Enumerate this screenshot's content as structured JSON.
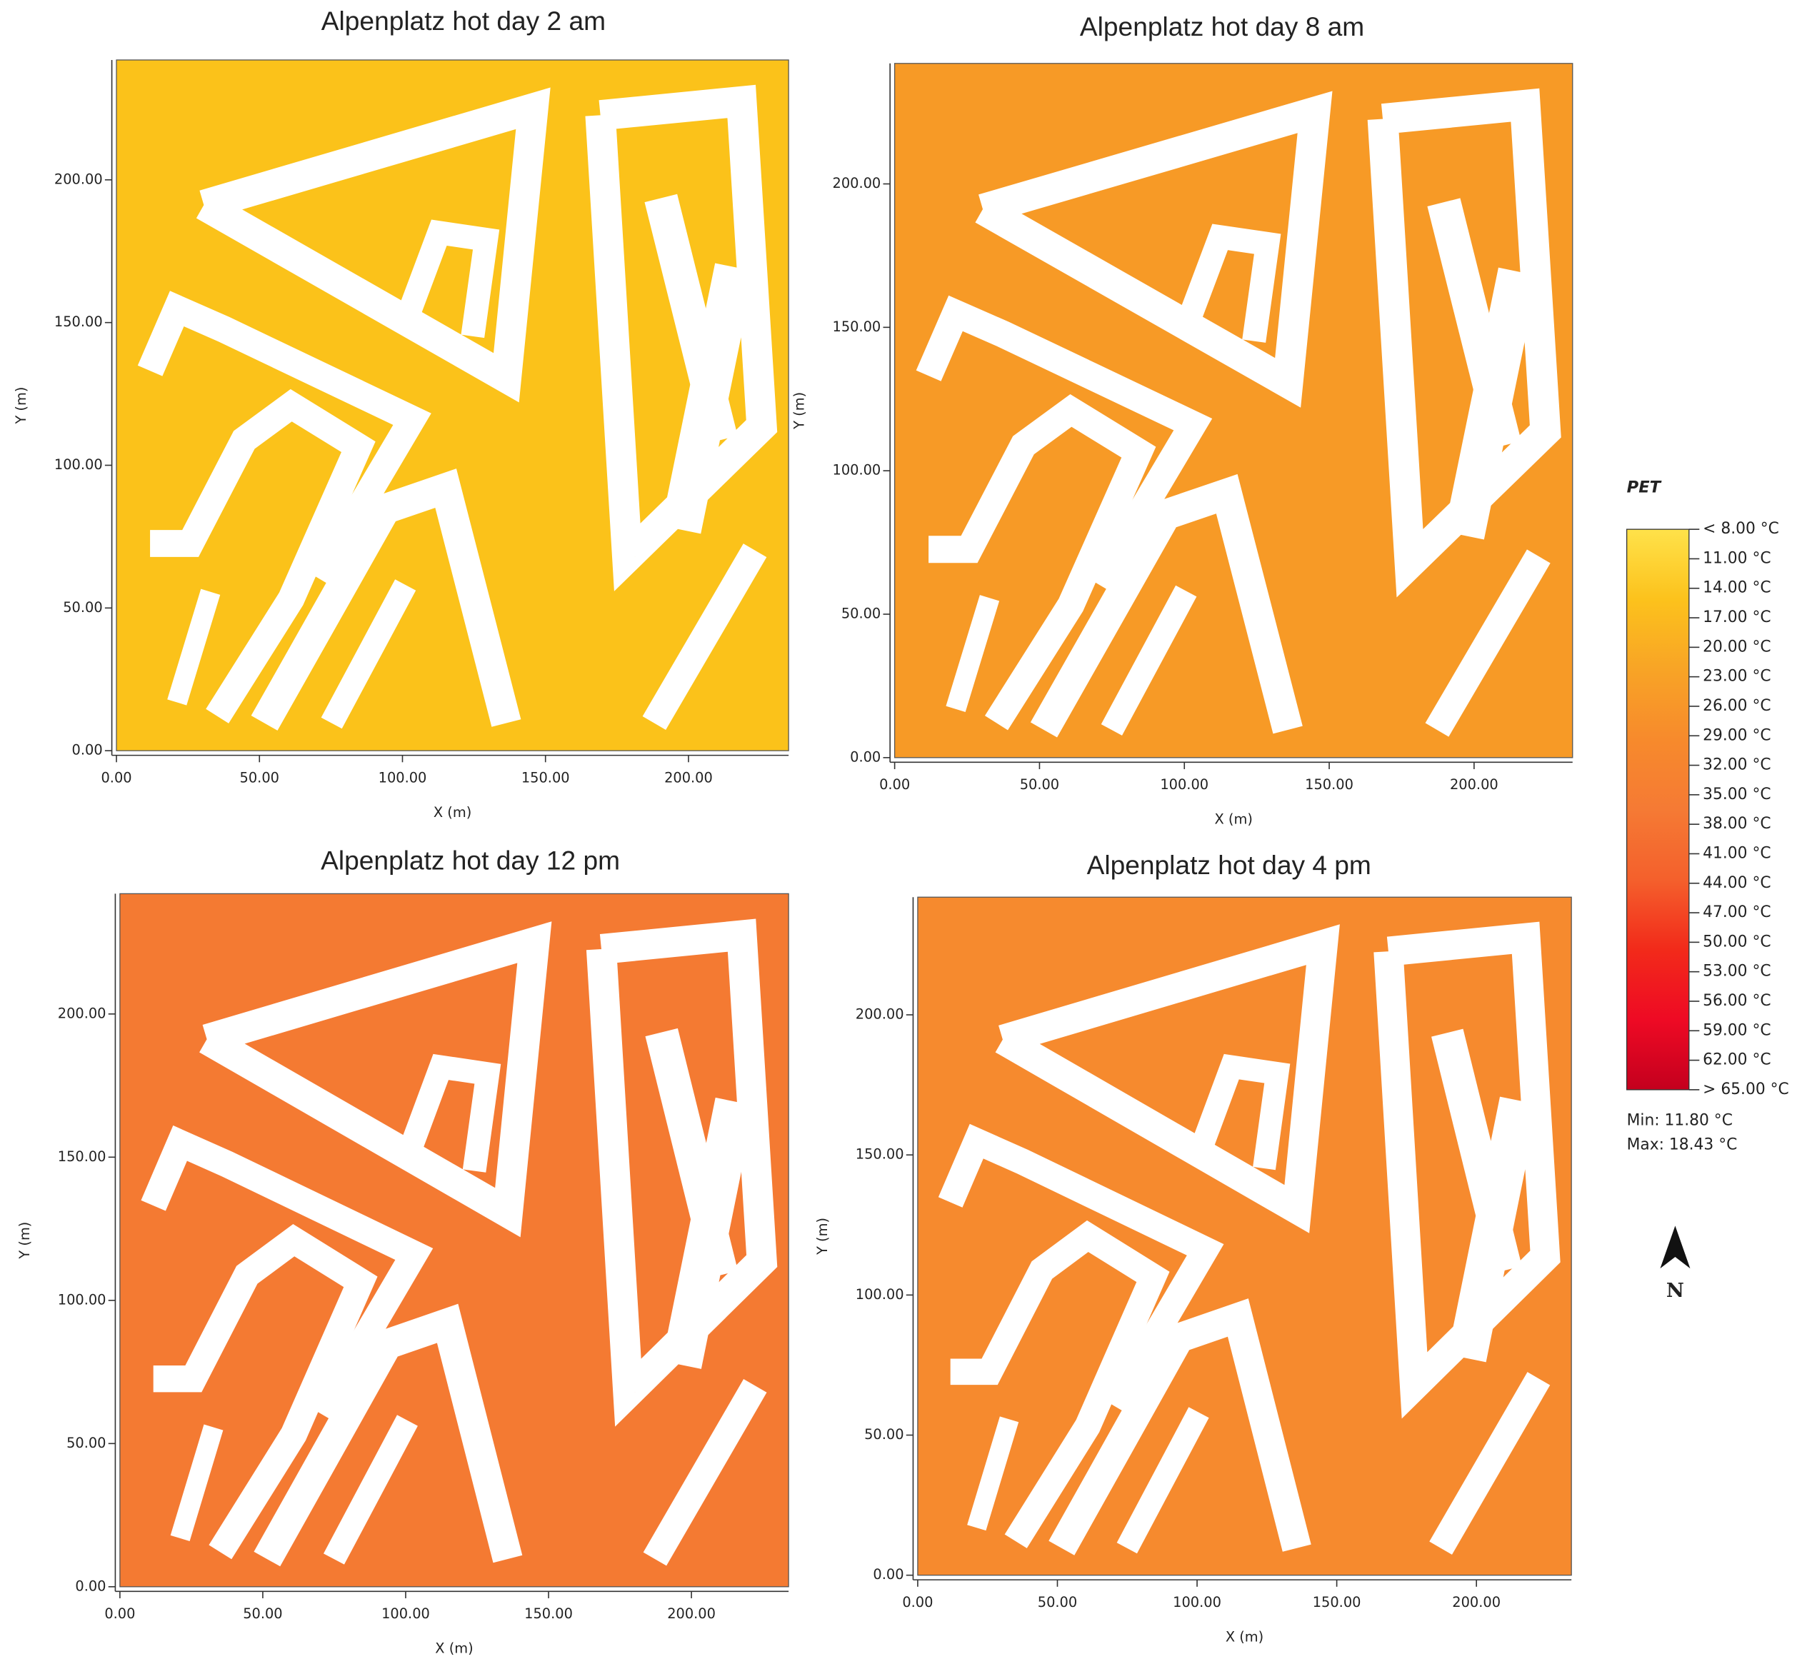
{
  "chart_data": [
    {
      "type": "heatmap",
      "title": "Alpenplatz hot day 2 am",
      "x_label": "X (m)",
      "y_label": "Y (m)",
      "color": "#fbc21a",
      "xlim": [
        0,
        235
      ],
      "ylim": [
        0,
        242
      ],
      "xticks": [
        {
          "value": 0,
          "label": "0.00"
        },
        {
          "value": 50,
          "label": "50.00"
        },
        {
          "value": 100,
          "label": "100.00"
        },
        {
          "value": 150,
          "label": "150.00"
        },
        {
          "value": 200,
          "label": "200.00"
        }
      ],
      "yticks": [
        {
          "value": 0,
          "label": "0.00"
        },
        {
          "value": 50,
          "label": "50.00"
        },
        {
          "value": 100,
          "label": "100.00"
        },
        {
          "value": 150,
          "label": "150.00"
        },
        {
          "value": 200,
          "label": "200.00"
        }
      ]
    },
    {
      "type": "heatmap",
      "title": "Alpenplatz hot day 8 am",
      "x_label": "X (m)",
      "y_label": "Y (m)",
      "color": "#f79a26",
      "xlim": [
        0,
        234
      ],
      "ylim": [
        0,
        242
      ],
      "xticks": [
        {
          "value": 0,
          "label": "0.00"
        },
        {
          "value": 50,
          "label": "50.00"
        },
        {
          "value": 100,
          "label": "100.00"
        },
        {
          "value": 150,
          "label": "150.00"
        },
        {
          "value": 200,
          "label": "200.00"
        }
      ],
      "yticks": [
        {
          "value": 0,
          "label": "0.00"
        },
        {
          "value": 50,
          "label": "50.00"
        },
        {
          "value": 100,
          "label": "100.00"
        },
        {
          "value": 150,
          "label": "150.00"
        },
        {
          "value": 200,
          "label": "200.00"
        }
      ]
    },
    {
      "type": "heatmap",
      "title": "Alpenplatz hot day 12 pm",
      "x_label": "X (m)",
      "y_label": "Y (m)",
      "color": "#f47a32",
      "xlim": [
        0,
        234
      ],
      "ylim": [
        0,
        242
      ],
      "xticks": [
        {
          "value": 0,
          "label": "0.00"
        },
        {
          "value": 50,
          "label": "50.00"
        },
        {
          "value": 100,
          "label": "100.00"
        },
        {
          "value": 150,
          "label": "150.00"
        },
        {
          "value": 200,
          "label": "200.00"
        }
      ],
      "yticks": [
        {
          "value": 0,
          "label": "0.00"
        },
        {
          "value": 50,
          "label": "50.00"
        },
        {
          "value": 100,
          "label": "100.00"
        },
        {
          "value": 150,
          "label": "150.00"
        },
        {
          "value": 200,
          "label": "200.00"
        }
      ]
    },
    {
      "type": "heatmap",
      "title": "Alpenplatz hot day 4 pm",
      "x_label": "X (m)",
      "y_label": "Y (m)",
      "color": "#f68a2e",
      "xlim": [
        0,
        234
      ],
      "ylim": [
        0,
        242
      ],
      "xticks": [
        {
          "value": 0,
          "label": "0.00"
        },
        {
          "value": 50,
          "label": "50.00"
        },
        {
          "value": 100,
          "label": "100.00"
        },
        {
          "value": 150,
          "label": "150.00"
        },
        {
          "value": 200,
          "label": "200.00"
        }
      ],
      "yticks": [
        {
          "value": 0,
          "label": "0.00"
        },
        {
          "value": 50,
          "label": "50.00"
        },
        {
          "value": 100,
          "label": "100.00"
        },
        {
          "value": 150,
          "label": "150.00"
        },
        {
          "value": 200,
          "label": "200.00"
        }
      ]
    }
  ],
  "colorbar": {
    "title": "PET",
    "colors": [
      "#ffe24a",
      "#fcc21c",
      "#f8a426",
      "#f78a2c",
      "#f57a34",
      "#f4602c",
      "#f22a1a",
      "#ee0a24",
      "#c4001e"
    ],
    "ticks": [
      {
        "value": 8,
        "label": "< 8.00 °C"
      },
      {
        "value": 11,
        "label": "11.00 °C"
      },
      {
        "value": 14,
        "label": "14.00 °C"
      },
      {
        "value": 17,
        "label": "17.00 °C"
      },
      {
        "value": 20,
        "label": "20.00 °C"
      },
      {
        "value": 23,
        "label": "23.00 °C"
      },
      {
        "value": 26,
        "label": "26.00 °C"
      },
      {
        "value": 29,
        "label": "29.00 °C"
      },
      {
        "value": 32,
        "label": "32.00 °C"
      },
      {
        "value": 35,
        "label": "35.00 °C"
      },
      {
        "value": 38,
        "label": "38.00 °C"
      },
      {
        "value": 41,
        "label": "41.00 °C"
      },
      {
        "value": 44,
        "label": "44.00 °C"
      },
      {
        "value": 47,
        "label": "47.00 °C"
      },
      {
        "value": 50,
        "label": "50.00 °C"
      },
      {
        "value": 53,
        "label": "53.00 °C"
      },
      {
        "value": 56,
        "label": "56.00 °C"
      },
      {
        "value": 59,
        "label": "59.00 °C"
      },
      {
        "value": 62,
        "label": "62.00 °C"
      },
      {
        "value": 65,
        "label": "> 65.00 °C"
      }
    ]
  },
  "stats": {
    "min": "Min: 11.80 °C",
    "max": "Max: 18.43 °C"
  },
  "north": "N"
}
